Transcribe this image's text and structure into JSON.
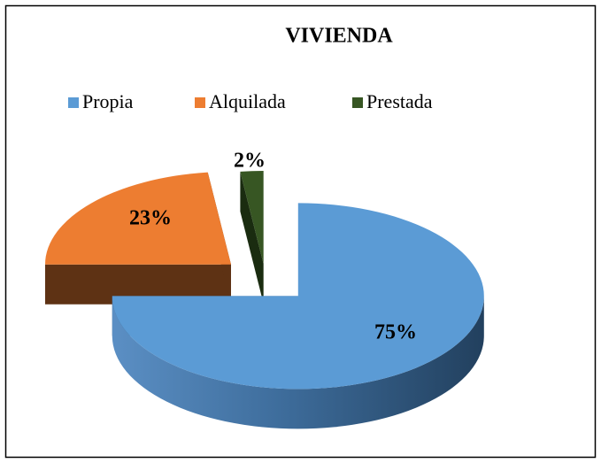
{
  "chart_data": {
    "type": "pie",
    "title": "VIVIENDA",
    "categories": [
      "Propia",
      "Alquilada",
      "Prestada"
    ],
    "values": [
      75,
      23,
      2
    ],
    "value_labels": [
      "75%",
      "23%",
      "2%"
    ],
    "colors": [
      "#5b9bd5",
      "#ed7d31",
      "#375623"
    ],
    "legend": "top"
  }
}
